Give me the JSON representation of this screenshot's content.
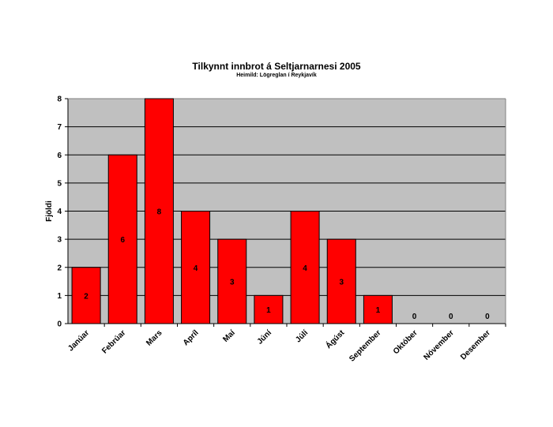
{
  "chart_data": {
    "type": "bar",
    "title": "Tilkynnt innbrot á Seltjarnarnesi 2005",
    "subtitle": "Heimild: Lögreglan í Reykjavík",
    "xlabel": "",
    "ylabel": "Fjöldi",
    "categories": [
      "Janúar",
      "Febrúar",
      "Mars",
      "Apríl",
      "Maí",
      "Júní",
      "Júlí",
      "Ágúst",
      "September",
      "Október",
      "Nóvember",
      "Desember"
    ],
    "values": [
      2,
      6,
      8,
      4,
      3,
      1,
      4,
      3,
      1,
      0,
      0,
      0
    ],
    "ylim": [
      0,
      8
    ],
    "yticks": [
      0,
      1,
      2,
      3,
      4,
      5,
      6,
      7,
      8
    ],
    "grid": true,
    "legend": "none",
    "colors": {
      "bar": "#ff0000",
      "plot_background": "#c0c0c0",
      "grid": "#000000"
    }
  }
}
